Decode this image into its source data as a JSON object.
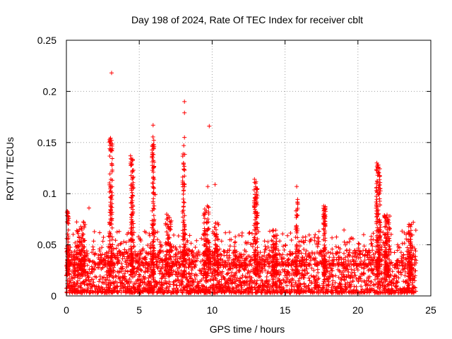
{
  "chart_data": {
    "type": "scatter",
    "title": "Day 198 of 2024, Rate Of TEC Index for receiver cblt",
    "xlabel": "GPS time / hours",
    "ylabel": "ROTI / TECUs",
    "xlim": [
      0,
      25
    ],
    "ylim": [
      0,
      0.25
    ],
    "x_ticks": [
      0,
      5,
      10,
      15,
      20,
      25
    ],
    "x_tick_labels": [
      "0",
      "5",
      "10",
      "15",
      "20",
      "25"
    ],
    "y_ticks": [
      0,
      0.05,
      0.1,
      0.15,
      0.2,
      0.25
    ],
    "y_tick_labels": [
      "0",
      "0.05",
      "0.1",
      "0.15",
      "0.2",
      "0.25"
    ],
    "grid": true,
    "marker": "+",
    "color": "#ff0000",
    "background_band": {
      "x_range": [
        0,
        24
      ],
      "typical_range": [
        0.003,
        0.045
      ]
    },
    "notable_points": [
      {
        "x": 3.1,
        "y": 0.218
      },
      {
        "x": 8.1,
        "y": 0.19
      },
      {
        "x": 8.1,
        "y": 0.179
      },
      {
        "x": 5.95,
        "y": 0.167
      },
      {
        "x": 9.8,
        "y": 0.166
      },
      {
        "x": 3.0,
        "y": 0.152
      },
      {
        "x": 3.05,
        "y": 0.149
      },
      {
        "x": 8.1,
        "y": 0.155
      },
      {
        "x": 8.05,
        "y": 0.147
      },
      {
        "x": 4.4,
        "y": 0.137
      },
      {
        "x": 4.45,
        "y": 0.128
      },
      {
        "x": 5.9,
        "y": 0.14
      },
      {
        "x": 5.95,
        "y": 0.125
      },
      {
        "x": 8.05,
        "y": 0.124
      },
      {
        "x": 21.3,
        "y": 0.13
      },
      {
        "x": 21.4,
        "y": 0.128
      },
      {
        "x": 21.35,
        "y": 0.118
      },
      {
        "x": 21.45,
        "y": 0.108
      },
      {
        "x": 12.9,
        "y": 0.114
      },
      {
        "x": 15.8,
        "y": 0.107
      },
      {
        "x": 10.2,
        "y": 0.109
      },
      {
        "x": 9.7,
        "y": 0.107
      },
      {
        "x": 8.1,
        "y": 0.107
      },
      {
        "x": 13.1,
        "y": 0.098
      },
      {
        "x": 4.5,
        "y": 0.101
      },
      {
        "x": 6.1,
        "y": 0.099
      },
      {
        "x": 1.55,
        "y": 0.086
      },
      {
        "x": 0.1,
        "y": 0.082
      },
      {
        "x": 17.65,
        "y": 0.088
      },
      {
        "x": 17.75,
        "y": 0.085
      },
      {
        "x": 23.8,
        "y": 0.072
      },
      {
        "x": 23.5,
        "y": 0.07
      }
    ],
    "clusters": [
      {
        "x_center": 0.1,
        "x_width": 0.15,
        "y_max": 0.083,
        "count": 70
      },
      {
        "x_center": 1.0,
        "x_width": 0.6,
        "y_max": 0.073,
        "count": 90
      },
      {
        "x_center": 3.05,
        "x_width": 0.2,
        "y_max": 0.155,
        "count": 110
      },
      {
        "x_center": 4.5,
        "x_width": 0.2,
        "y_max": 0.135,
        "count": 110
      },
      {
        "x_center": 5.95,
        "x_width": 0.15,
        "y_max": 0.162,
        "count": 100
      },
      {
        "x_center": 7.0,
        "x_width": 0.4,
        "y_max": 0.082,
        "count": 70
      },
      {
        "x_center": 8.05,
        "x_width": 0.15,
        "y_max": 0.14,
        "count": 80
      },
      {
        "x_center": 9.6,
        "x_width": 0.4,
        "y_max": 0.088,
        "count": 90
      },
      {
        "x_center": 10.3,
        "x_width": 0.3,
        "y_max": 0.072,
        "count": 60
      },
      {
        "x_center": 13.0,
        "x_width": 0.25,
        "y_max": 0.112,
        "count": 110
      },
      {
        "x_center": 14.3,
        "x_width": 0.3,
        "y_max": 0.065,
        "count": 60
      },
      {
        "x_center": 15.8,
        "x_width": 0.15,
        "y_max": 0.095,
        "count": 60
      },
      {
        "x_center": 17.7,
        "x_width": 0.15,
        "y_max": 0.088,
        "count": 80
      },
      {
        "x_center": 21.4,
        "x_width": 0.3,
        "y_max": 0.128,
        "count": 140
      },
      {
        "x_center": 22.0,
        "x_width": 0.4,
        "y_max": 0.08,
        "count": 100
      },
      {
        "x_center": 23.6,
        "x_width": 0.3,
        "y_max": 0.072,
        "count": 70
      }
    ]
  }
}
